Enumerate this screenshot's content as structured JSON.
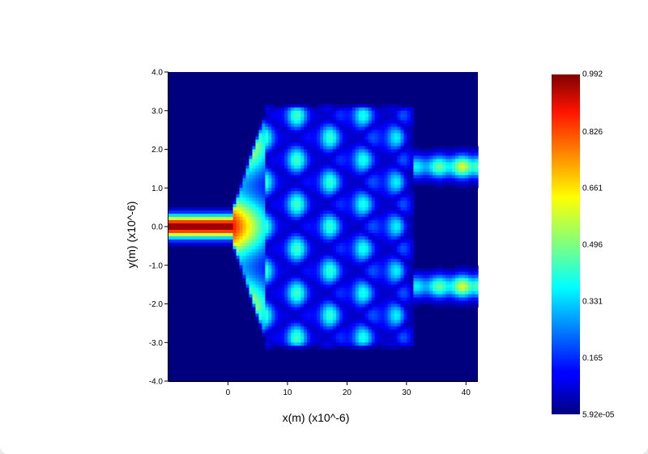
{
  "chart_data": {
    "type": "heatmap",
    "title": "",
    "xlabel": "x(m) (x10^-6)",
    "ylabel": "y(m) (x10^-6)",
    "xlim": [
      -10,
      42
    ],
    "ylim": [
      -4.0,
      4.0
    ],
    "x_ticks": [
      {
        "value": 0,
        "label": "0"
      },
      {
        "value": 10,
        "label": "10"
      },
      {
        "value": 20,
        "label": "20"
      },
      {
        "value": 30,
        "label": "30"
      },
      {
        "value": 40,
        "label": "40"
      }
    ],
    "y_ticks": [
      {
        "value": 4.0,
        "label": "4.0"
      },
      {
        "value": 3.0,
        "label": "3.0"
      },
      {
        "value": 2.0,
        "label": "2.0"
      },
      {
        "value": 1.0,
        "label": "1.0"
      },
      {
        "value": 0.0,
        "label": "0.0"
      },
      {
        "value": -1.0,
        "label": "-1.0"
      },
      {
        "value": -2.0,
        "label": "-2.0"
      },
      {
        "value": -3.0,
        "label": "-3.0"
      },
      {
        "value": -4.0,
        "label": "-4.0"
      }
    ],
    "colorscale": "jet",
    "colorbar": {
      "min": 5.92e-05,
      "max": 0.992,
      "ticks": [
        {
          "value": 0.992,
          "label": "0.992"
        },
        {
          "value": 0.826,
          "label": "0.826"
        },
        {
          "value": 0.661,
          "label": "0.661"
        },
        {
          "value": 0.496,
          "label": "0.496"
        },
        {
          "value": 0.331,
          "label": "0.331"
        },
        {
          "value": 0.165,
          "label": "0.165"
        },
        {
          "value": 5.92e-05,
          "label": "5.92e-05"
        }
      ]
    },
    "regions": {
      "input_waveguide": {
        "x": [
          -10,
          1
        ],
        "y_center": 0.0,
        "peak": 0.99
      },
      "taper": {
        "x": [
          1,
          6
        ],
        "y_half_width_end": 2.6
      },
      "mmi_region": {
        "x": [
          6,
          31
        ],
        "y": [
          -3.0,
          3.0
        ],
        "peak": 0.45
      },
      "output_waveguides": [
        {
          "x": [
            31,
            42
          ],
          "y_center": 1.55,
          "peak": 0.6
        },
        {
          "x": [
            31,
            42
          ],
          "y_center": -1.55,
          "peak": 0.6
        }
      ]
    }
  }
}
